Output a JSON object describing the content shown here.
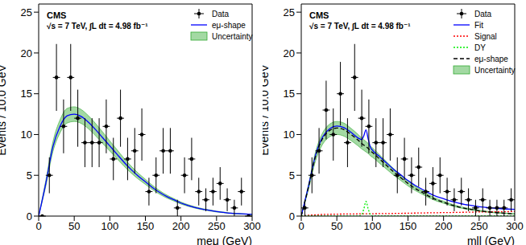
{
  "chart_data": [
    {
      "type": "line",
      "annotations": [
        "CMS",
        "√s = 7 TeV, ∫L dt = 4.98 fb⁻¹"
      ],
      "x_label": "meμ (GeV)",
      "y_label": "Events / 10.0 GeV",
      "xlim": [
        0,
        300
      ],
      "ylim": [
        0,
        26
      ],
      "xticks": [
        0,
        50,
        100,
        150,
        200,
        250,
        300
      ],
      "yticks": [
        0,
        5,
        10,
        15,
        20,
        25
      ],
      "grid": false,
      "legend": "top-right",
      "series": [
        {
          "name": "Data",
          "type": "scatter",
          "marker": "circle",
          "color": "#000000",
          "x_error": 5,
          "x": [
            5,
            15,
            25,
            35,
            45,
            55,
            65,
            75,
            85,
            95,
            105,
            115,
            125,
            135,
            145,
            155,
            165,
            175,
            185,
            195,
            205,
            215,
            225,
            235,
            245,
            255,
            265,
            275,
            285,
            295
          ],
          "values": [
            0,
            5,
            17,
            11,
            17,
            12,
            9,
            9,
            9,
            11,
            7,
            12,
            7,
            8,
            10,
            3,
            5,
            8,
            8,
            1,
            5,
            7,
            3,
            2,
            3,
            4,
            2,
            1,
            3,
            0
          ],
          "errors": [
            0,
            2.2,
            4.1,
            3.3,
            4.1,
            3.5,
            3,
            3,
            3,
            3.3,
            2.6,
            3.5,
            2.6,
            2.8,
            3.2,
            1.7,
            2.2,
            2.8,
            2.8,
            1,
            2.2,
            2.6,
            1.7,
            1.4,
            1.7,
            2,
            1.4,
            1,
            1.7,
            0
          ]
        },
        {
          "name": "eμ-shape",
          "type": "line",
          "line_style": "solid",
          "color": "#0000ff",
          "x": [
            0,
            10,
            20,
            30,
            40,
            50,
            60,
            70,
            80,
            90,
            100,
            110,
            120,
            130,
            140,
            150,
            160,
            170,
            180,
            190,
            200,
            210,
            220,
            230,
            240,
            250,
            260,
            270,
            280,
            290,
            300
          ],
          "values": [
            0,
            4,
            8.5,
            11,
            12.3,
            12.5,
            12.2,
            11.5,
            10.6,
            9.6,
            8.6,
            7.6,
            6.6,
            5.7,
            4.9,
            4.2,
            3.5,
            2.9,
            2.4,
            2.0,
            1.6,
            1.3,
            1.05,
            0.85,
            0.7,
            0.55,
            0.45,
            0.35,
            0.3,
            0.25,
            0.2
          ]
        },
        {
          "name": "Uncertainty",
          "type": "band",
          "color": "#33aa33",
          "x": [
            0,
            10,
            20,
            30,
            40,
            50,
            60,
            70,
            80,
            90,
            100,
            110,
            120,
            130,
            140,
            150,
            160,
            170,
            180,
            190,
            200,
            210,
            220,
            230,
            240,
            250,
            260,
            270,
            280,
            290,
            300
          ],
          "values": [
            0,
            4,
            8.5,
            11,
            12.3,
            12.5,
            12.2,
            11.5,
            10.6,
            9.6,
            8.6,
            7.6,
            6.6,
            5.7,
            4.9,
            4.2,
            3.5,
            2.9,
            2.4,
            2.0,
            1.6,
            1.3,
            1.05,
            0.85,
            0.7,
            0.55,
            0.45,
            0.35,
            0.3,
            0.25,
            0.2
          ],
          "errors": [
            0,
            0.35,
            0.6,
            0.8,
            0.9,
            0.9,
            0.85,
            0.8,
            0.75,
            0.7,
            0.62,
            0.55,
            0.48,
            0.42,
            0.36,
            0.31,
            0.26,
            0.22,
            0.18,
            0.15,
            0.12,
            0.1,
            0.08,
            0.07,
            0.06,
            0.05,
            0.04,
            0.03,
            0.03,
            0.02,
            0.02
          ]
        }
      ]
    },
    {
      "type": "line",
      "annotations": [
        "CMS",
        "√s = 7 TeV, ∫L dt = 4.98 fb⁻¹"
      ],
      "x_label": "mll (GeV)",
      "y_label": "Events / 10.0 GeV",
      "xlim": [
        0,
        300
      ],
      "ylim": [
        0,
        26
      ],
      "xticks": [
        0,
        50,
        100,
        150,
        200,
        250,
        300
      ],
      "yticks": [
        0,
        5,
        10,
        15,
        20,
        25
      ],
      "grid": false,
      "legend": "top-right",
      "series": [
        {
          "name": "Data",
          "type": "scatter",
          "marker": "circle",
          "color": "#000000",
          "x_error": 5,
          "x": [
            5,
            15,
            25,
            35,
            45,
            55,
            65,
            75,
            85,
            95,
            105,
            115,
            125,
            135,
            145,
            155,
            165,
            175,
            185,
            195,
            205,
            215,
            225,
            235,
            245,
            255,
            265,
            275,
            285,
            295
          ],
          "values": [
            1,
            5,
            8,
            13,
            10,
            15,
            9,
            17,
            12,
            11,
            9,
            9,
            10,
            5,
            7,
            5,
            6,
            3,
            4,
            5,
            3,
            2,
            3,
            2,
            1,
            2,
            1,
            1,
            1,
            2
          ],
          "errors": [
            1,
            2.2,
            2.8,
            3.6,
            3.2,
            3.9,
            3,
            4.1,
            3.5,
            3.3,
            3,
            3,
            3.2,
            2.2,
            2.6,
            2.2,
            2.4,
            1.7,
            2,
            2.2,
            1.7,
            1.4,
            1.7,
            1.4,
            1,
            1.4,
            1,
            1,
            1,
            1.4
          ]
        },
        {
          "name": "Fit",
          "type": "line",
          "line_style": "solid",
          "color": "#0000ff",
          "x": [
            0,
            10,
            20,
            30,
            40,
            50,
            60,
            70,
            80,
            85,
            88,
            91,
            94,
            97,
            100,
            110,
            120,
            130,
            140,
            150,
            160,
            170,
            180,
            190,
            200,
            210,
            220,
            230,
            240,
            250,
            260,
            270,
            280,
            290,
            300
          ],
          "values": [
            0,
            3.6,
            7.45,
            9.7,
            10.72,
            11.04,
            10.85,
            10.26,
            9.57,
            9.38,
            9.88,
            10.58,
            9.48,
            8.48,
            8.09,
            7.3,
            6.51,
            5.72,
            5.04,
            4.35,
            3.77,
            3.28,
            2.8,
            2.41,
            2.13,
            1.84,
            1.61,
            1.42,
            1.29,
            1.15,
            1.06,
            0.97,
            0.91,
            0.86,
            0.82
          ]
        },
        {
          "name": "Signal",
          "type": "line",
          "line_style": "dotted",
          "color": "#ff0000",
          "x": [
            0,
            10,
            20,
            30,
            40,
            50,
            60,
            70,
            80,
            85,
            88,
            91,
            94,
            97,
            100,
            110,
            120,
            130,
            140,
            150,
            160,
            170,
            180,
            190,
            200,
            210,
            220,
            230,
            240,
            250,
            260,
            270,
            280,
            290,
            300
          ],
          "values": [
            0,
            0.1,
            0.15,
            0.2,
            0.22,
            0.24,
            0.25,
            0.26,
            0.27,
            0.28,
            0.28,
            0.28,
            0.28,
            0.28,
            0.29,
            0.3,
            0.31,
            0.32,
            0.34,
            0.35,
            0.37,
            0.38,
            0.4,
            0.41,
            0.43,
            0.44,
            0.46,
            0.47,
            0.49,
            0.5,
            0.51,
            0.52,
            0.53,
            0.54,
            0.55
          ]
        },
        {
          "name": "DY",
          "type": "line",
          "line_style": "dotted",
          "color": "#00ee00",
          "x": [
            0,
            10,
            20,
            30,
            40,
            50,
            60,
            70,
            80,
            85,
            88,
            91,
            94,
            97,
            100,
            110,
            120,
            130,
            140,
            150,
            160,
            170,
            180,
            190,
            200,
            210,
            220,
            230,
            240,
            250,
            260,
            270,
            280,
            290,
            300
          ],
          "values": [
            0,
            0,
            0,
            0,
            0,
            0,
            0,
            0,
            0,
            0.2,
            0.9,
            1.8,
            0.9,
            0.2,
            0,
            0,
            0,
            0,
            0,
            0,
            0,
            0,
            0,
            0,
            0,
            0,
            0,
            0,
            0,
            0,
            0,
            0,
            0,
            0,
            0
          ]
        },
        {
          "name": "eμ-shape",
          "type": "line",
          "line_style": "dashed",
          "color": "#000000",
          "x": [
            0,
            10,
            20,
            30,
            40,
            50,
            60,
            70,
            80,
            85,
            88,
            91,
            94,
            97,
            100,
            110,
            120,
            130,
            140,
            150,
            160,
            170,
            180,
            190,
            200,
            210,
            220,
            230,
            240,
            250,
            260,
            270,
            280,
            290,
            300
          ],
          "values": [
            0,
            3.5,
            7.3,
            9.5,
            10.5,
            10.8,
            10.6,
            10.0,
            9.3,
            8.9,
            8.7,
            8.5,
            8.3,
            8.0,
            7.8,
            7.0,
            6.2,
            5.4,
            4.7,
            4.0,
            3.4,
            2.9,
            2.4,
            2.0,
            1.7,
            1.4,
            1.15,
            0.95,
            0.8,
            0.65,
            0.55,
            0.45,
            0.38,
            0.32,
            0.27
          ]
        },
        {
          "name": "Uncertainty",
          "type": "band",
          "color": "#33aa33",
          "x": [
            0,
            10,
            20,
            30,
            40,
            50,
            60,
            70,
            80,
            85,
            88,
            91,
            94,
            97,
            100,
            110,
            120,
            130,
            140,
            150,
            160,
            170,
            180,
            190,
            200,
            210,
            220,
            230,
            240,
            250,
            260,
            270,
            280,
            290,
            300
          ],
          "values": [
            0,
            3.5,
            7.3,
            9.5,
            10.5,
            10.8,
            10.6,
            10.0,
            9.3,
            8.9,
            8.7,
            8.5,
            8.3,
            8.0,
            7.8,
            7.0,
            6.2,
            5.4,
            4.7,
            4.0,
            3.4,
            2.9,
            2.4,
            2.0,
            1.7,
            1.4,
            1.15,
            0.95,
            0.8,
            0.65,
            0.55,
            0.45,
            0.38,
            0.32,
            0.27
          ],
          "errors": [
            0,
            0.3,
            0.55,
            0.7,
            0.78,
            0.8,
            0.8,
            0.75,
            0.7,
            0.67,
            0.65,
            0.64,
            0.62,
            0.6,
            0.58,
            0.52,
            0.46,
            0.4,
            0.35,
            0.3,
            0.26,
            0.22,
            0.18,
            0.15,
            0.13,
            0.11,
            0.09,
            0.08,
            0.07,
            0.06,
            0.05,
            0.04,
            0.04,
            0.03,
            0.03
          ]
        }
      ]
    }
  ]
}
